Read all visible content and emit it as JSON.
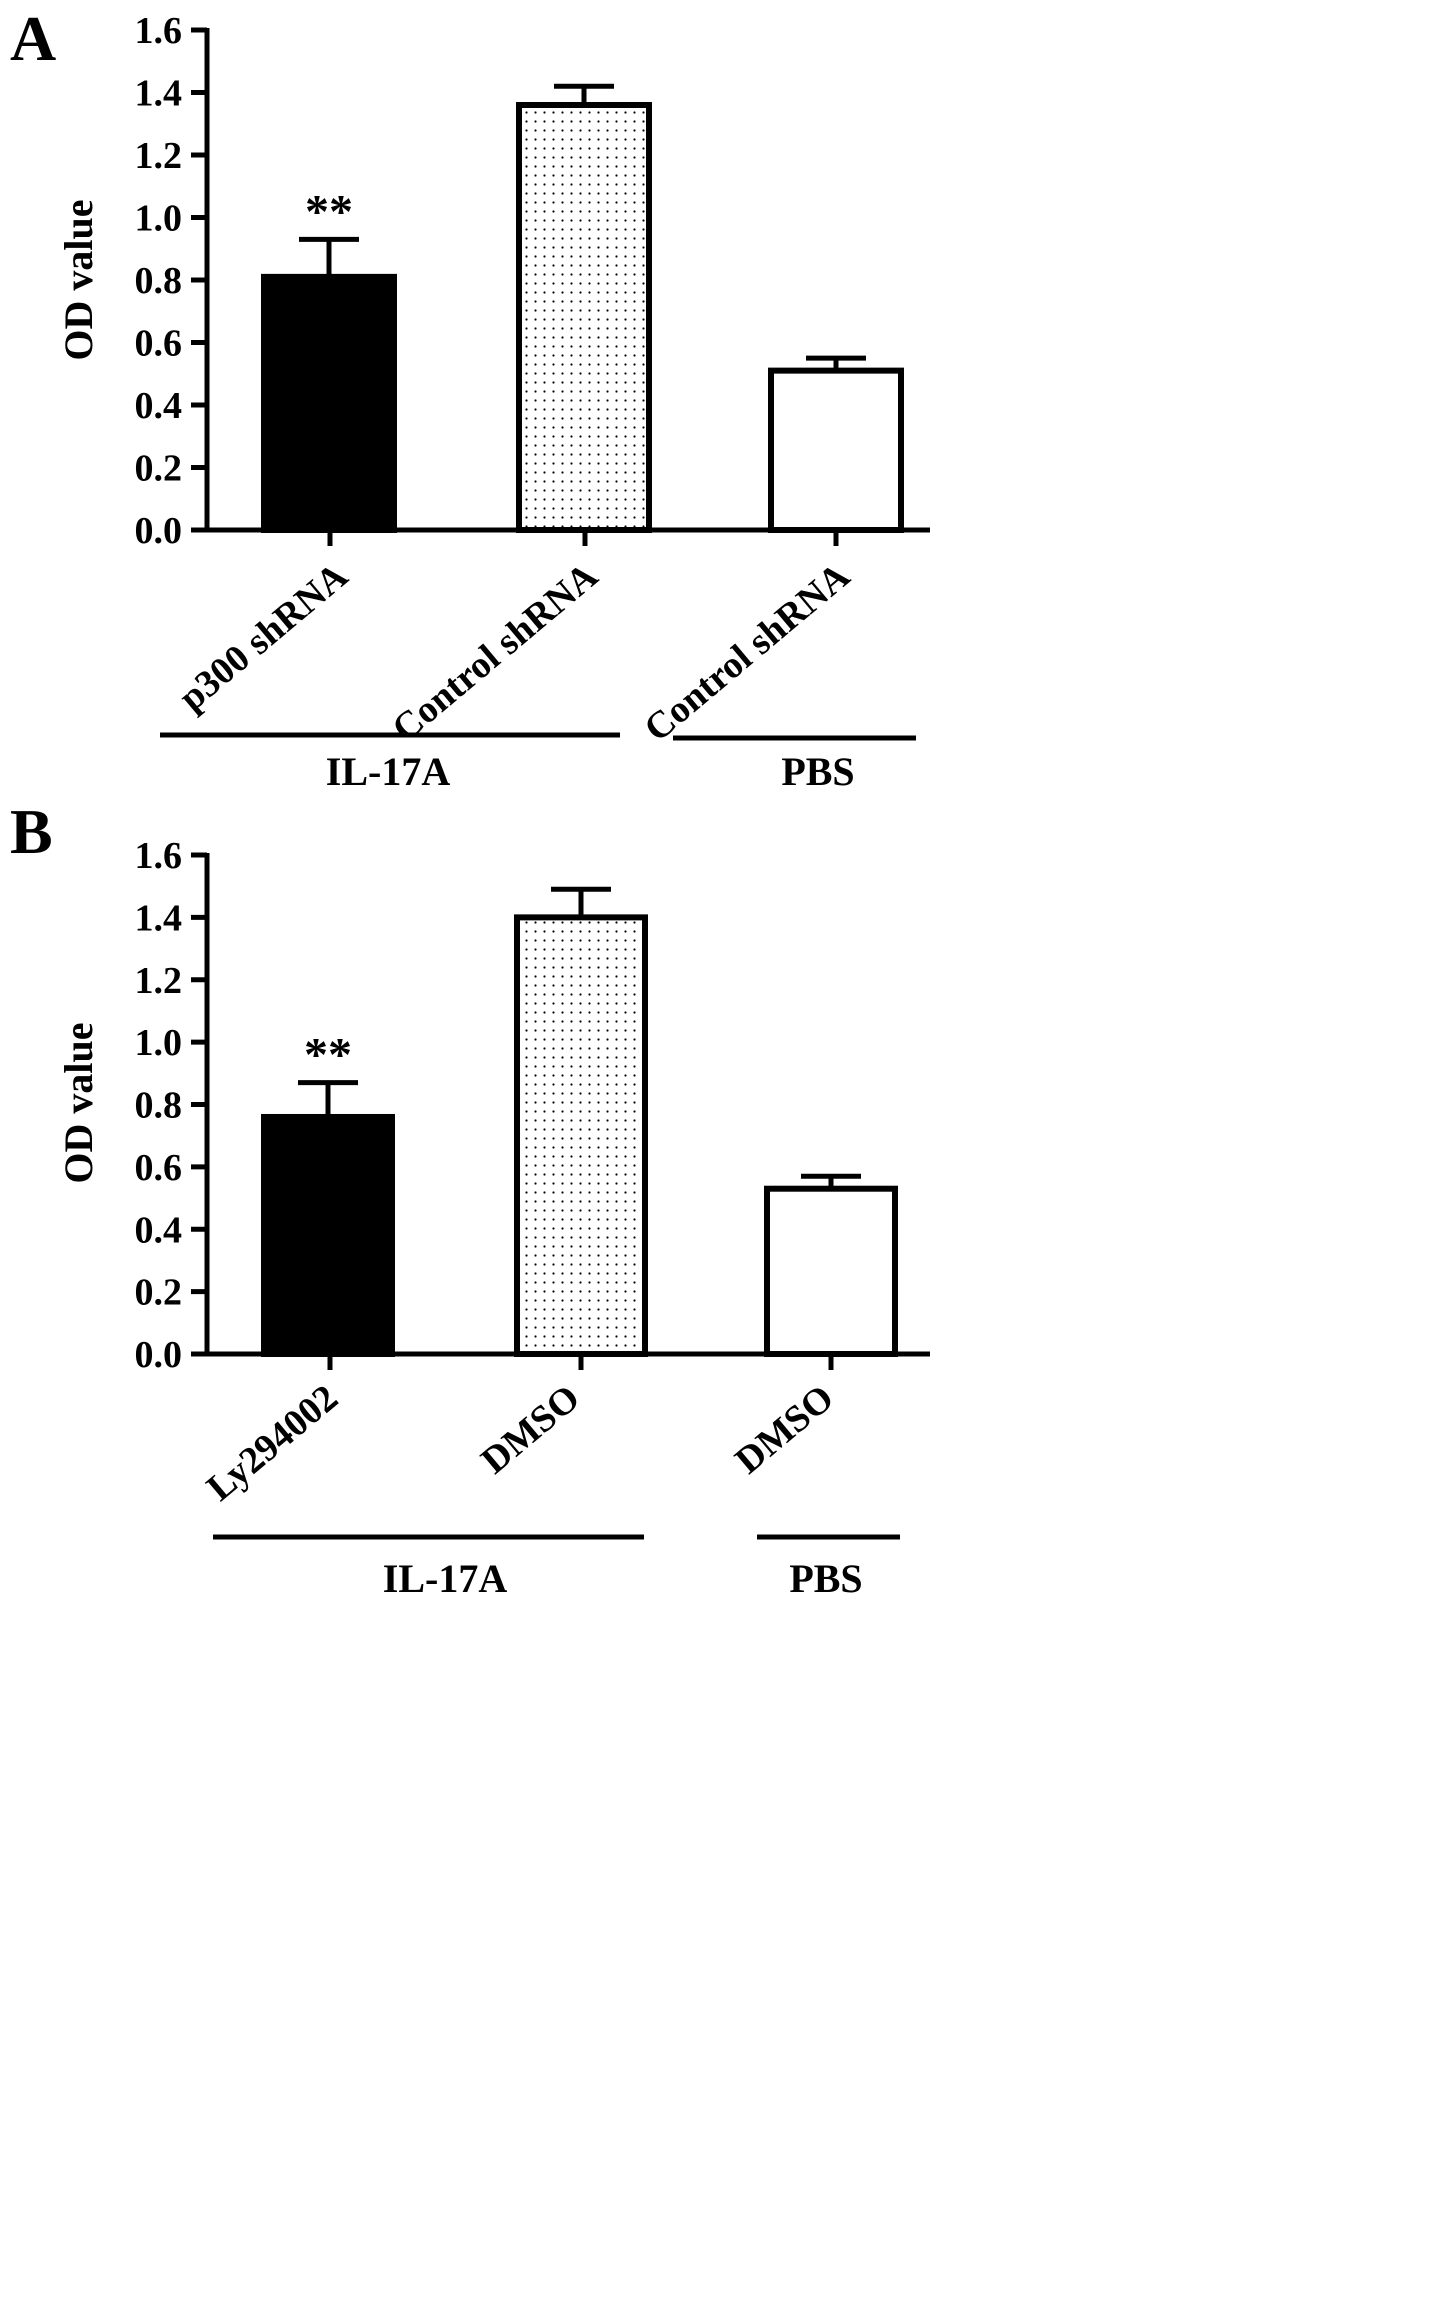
{
  "chart_data": [
    {
      "type": "bar",
      "panel_label": "A",
      "ylabel": "OD value",
      "xlabel": "",
      "ylim": [
        0,
        1.6
      ],
      "yticks": [
        "0.0",
        "0.2",
        "0.4",
        "0.6",
        "0.8",
        "1.0",
        "1.2",
        "1.4",
        "1.6"
      ],
      "categories": [
        "p300 shRNA",
        "Control shRNA",
        "Control shRNA"
      ],
      "values": [
        0.81,
        1.36,
        0.51
      ],
      "errors": [
        0.12,
        0.06,
        0.04
      ],
      "fills": [
        "solid",
        "dotted",
        "empty"
      ],
      "annotations": [
        "**",
        "",
        ""
      ],
      "groups": [
        {
          "label": "IL-17A",
          "members": [
            0,
            1
          ]
        },
        {
          "label": "PBS",
          "members": [
            2
          ]
        }
      ],
      "grid": false,
      "legend": "none"
    },
    {
      "type": "bar",
      "panel_label": "B",
      "ylabel": "OD value",
      "xlabel": "",
      "ylim": [
        0,
        1.6
      ],
      "yticks": [
        "0.0",
        "0.2",
        "0.4",
        "0.6",
        "0.8",
        "1.0",
        "1.2",
        "1.4",
        "1.6"
      ],
      "categories": [
        "Ly294002",
        "DMSO",
        "DMSO"
      ],
      "values": [
        0.76,
        1.4,
        0.53
      ],
      "errors": [
        0.11,
        0.09,
        0.04
      ],
      "fills": [
        "solid",
        "dotted",
        "empty"
      ],
      "annotations": [
        "**",
        "",
        ""
      ],
      "groups": [
        {
          "label": "IL-17A",
          "members": [
            0,
            1
          ]
        },
        {
          "label": "PBS",
          "members": [
            2
          ]
        }
      ],
      "grid": false,
      "legend": "none"
    }
  ]
}
